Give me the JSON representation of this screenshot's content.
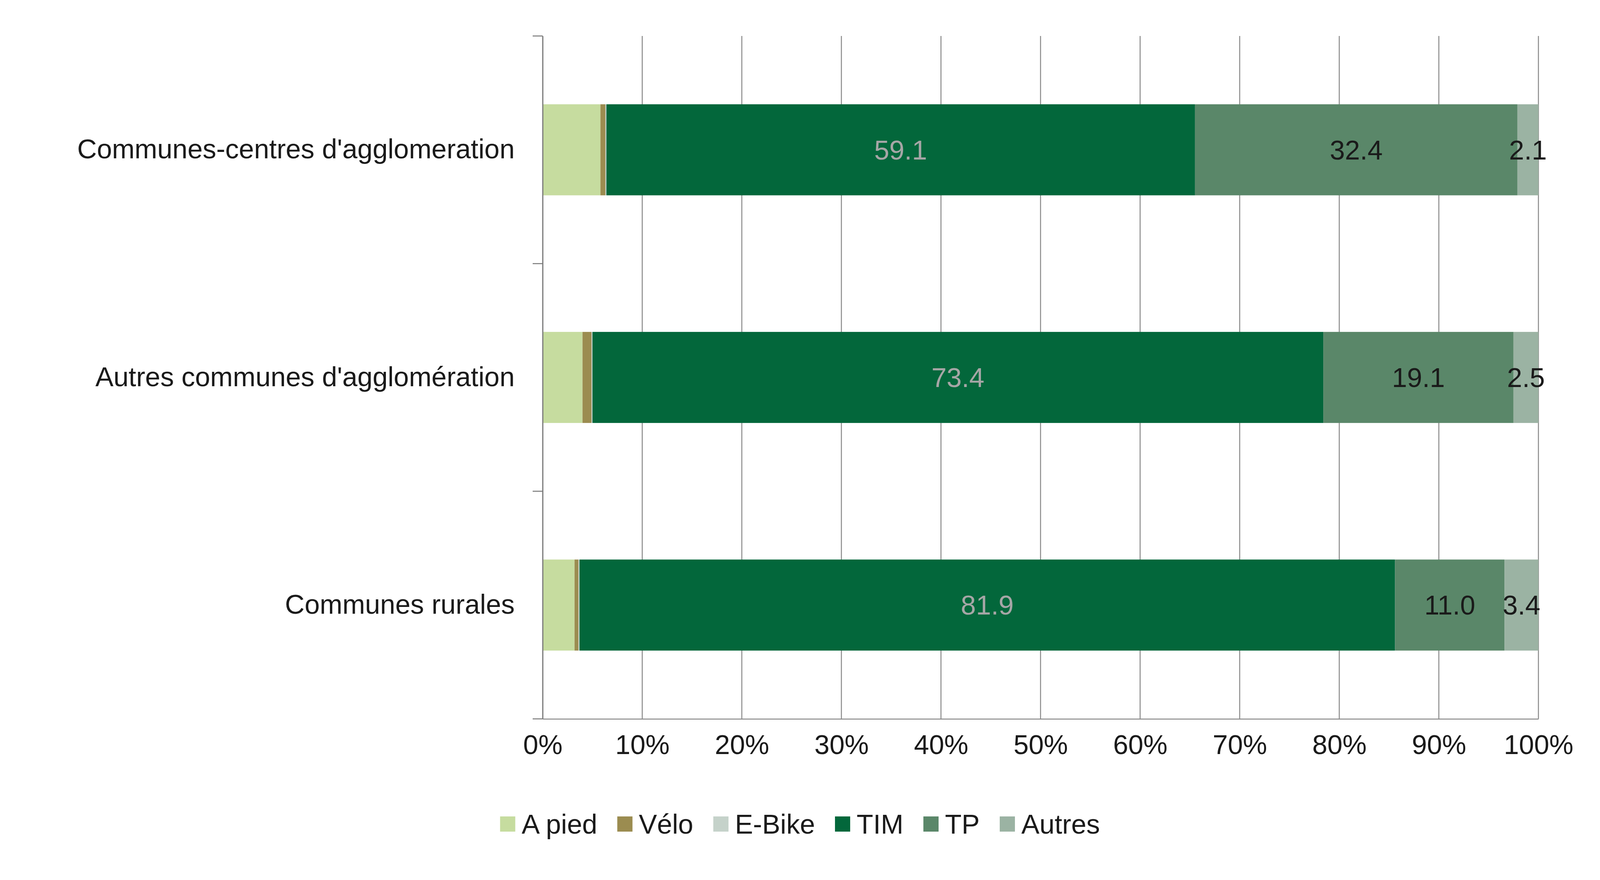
{
  "chart_data": {
    "type": "bar",
    "orientation": "horizontal",
    "stacked": true,
    "grid": true,
    "legend": "bottom",
    "categories": [
      "Communes-centres d'agglomeration",
      "Autres communes d'agglomération",
      "Communes rurales"
    ],
    "series": [
      {
        "name": "A pied",
        "color": "#c6dc9f",
        "values": [
          5.8,
          4.0,
          3.2
        ],
        "data_labels": false
      },
      {
        "name": "Vélo",
        "color": "#9b8c50",
        "values": [
          0.5,
          0.9,
          0.4
        ],
        "data_labels": false
      },
      {
        "name": "E-Bike",
        "color": "#c5d2ca",
        "values": [
          0.1,
          0.1,
          0.1
        ],
        "data_labels": false
      },
      {
        "name": "TIM",
        "color": "#03673b",
        "values": [
          59.1,
          73.4,
          81.9
        ],
        "value_labels": [
          "59.1",
          "73.4",
          "81.9"
        ],
        "data_labels": true
      },
      {
        "name": "TP",
        "color": "#5a8769",
        "values": [
          32.4,
          19.1,
          11.0
        ],
        "value_labels": [
          "32.4",
          "19.1",
          "11.0"
        ],
        "data_labels": true
      },
      {
        "name": "Autres",
        "color": "#9bb3a3",
        "values": [
          2.1,
          2.5,
          3.4
        ],
        "value_labels": [
          "2.1",
          "2.5",
          "3.4"
        ],
        "data_labels": true
      }
    ],
    "xlim": [
      0,
      100
    ],
    "xticks": [
      {
        "value": 0,
        "label": "0%"
      },
      {
        "value": 10,
        "label": "10%"
      },
      {
        "value": 20,
        "label": "20%"
      },
      {
        "value": 30,
        "label": "30%"
      },
      {
        "value": 40,
        "label": "40%"
      },
      {
        "value": 50,
        "label": "50%"
      },
      {
        "value": 60,
        "label": "60%"
      },
      {
        "value": 70,
        "label": "70%"
      },
      {
        "value": 80,
        "label": "80%"
      },
      {
        "value": 90,
        "label": "90%"
      },
      {
        "value": 100,
        "label": "100%"
      }
    ]
  }
}
